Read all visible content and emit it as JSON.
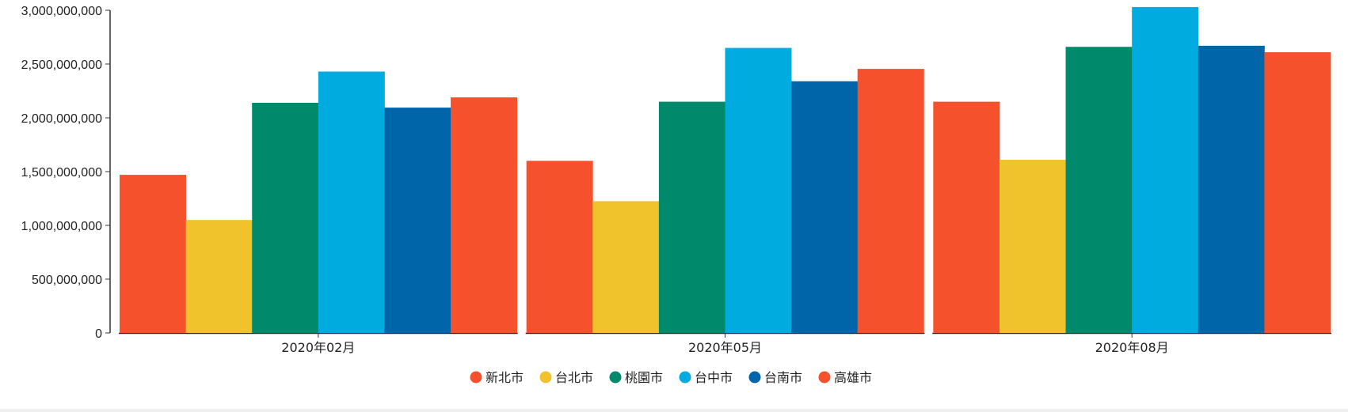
{
  "chart_data": {
    "type": "bar",
    "title": "",
    "xlabel": "",
    "ylabel": "",
    "categories": [
      "2020年02月",
      "2020年05月",
      "2020年08月"
    ],
    "series": [
      {
        "name": "新北市",
        "color": "#f4512c",
        "values": [
          1470000000,
          1600000000,
          2150000000
        ]
      },
      {
        "name": "台北市",
        "color": "#f0c22c",
        "values": [
          1050000000,
          1225000000,
          1610000000
        ]
      },
      {
        "name": "桃園市",
        "color": "#00896b",
        "values": [
          2140000000,
          2150000000,
          2660000000
        ]
      },
      {
        "name": "台中市",
        "color": "#00acdf",
        "values": [
          2430000000,
          2650000000,
          3030000000
        ]
      },
      {
        "name": "台南市",
        "color": "#0066a9",
        "values": [
          2095000000,
          2340000000,
          2670000000
        ]
      },
      {
        "name": "高雄市",
        "color": "#f4512c",
        "values": [
          2190000000,
          2455000000,
          2610000000
        ]
      }
    ],
    "ylim": [
      0,
      3000000000
    ],
    "yticks": [
      0,
      500000000,
      1000000000,
      1500000000,
      2000000000,
      2500000000,
      3000000000
    ],
    "ytick_labels": [
      "0",
      "500,000,000",
      "1,000,000,000",
      "1,500,000,000",
      "2,000,000,000",
      "2,500,000,000",
      "3,000,000,000"
    ],
    "grid": false,
    "legend_position": "bottom-center"
  }
}
